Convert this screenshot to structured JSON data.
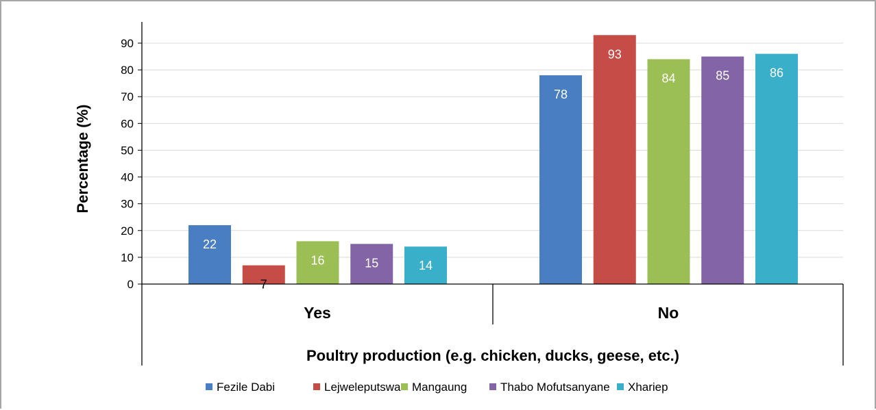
{
  "chart_data": {
    "type": "bar",
    "categories": [
      "Yes",
      "No"
    ],
    "series": [
      {
        "name": "Fezile Dabi",
        "values": [
          22,
          78
        ],
        "color": "#4a7ec3"
      },
      {
        "name": "Lejweleputswa",
        "values": [
          7,
          93
        ],
        "color": "#c64c47"
      },
      {
        "name": "Mangaung",
        "values": [
          16,
          84
        ],
        "color": "#9cbf55"
      },
      {
        "name": "Thabo Mofutsanyane",
        "values": [
          15,
          85
        ],
        "color": "#8364a6"
      },
      {
        "name": "Xhariep",
        "values": [
          14,
          86
        ],
        "color": "#3aafc9"
      }
    ],
    "title": "",
    "xlabel": "Poultry production (e.g. chicken, ducks, geese, etc.)",
    "ylabel": "Percentage (%)",
    "ylim": [
      0,
      90
    ],
    "yticks": [
      "0",
      "10",
      "20",
      "30",
      "40",
      "50",
      "60",
      "70",
      "80",
      "90"
    ],
    "grid": true,
    "legend_position": "bottom",
    "data_label_colors": {
      "Yes": [
        "#ffffff",
        "#000000",
        "#ffffff",
        "#ffffff",
        "#ffffff"
      ],
      "No": [
        "#ffffff",
        "#ffffff",
        "#ffffff",
        "#ffffff",
        "#ffffff"
      ]
    }
  }
}
